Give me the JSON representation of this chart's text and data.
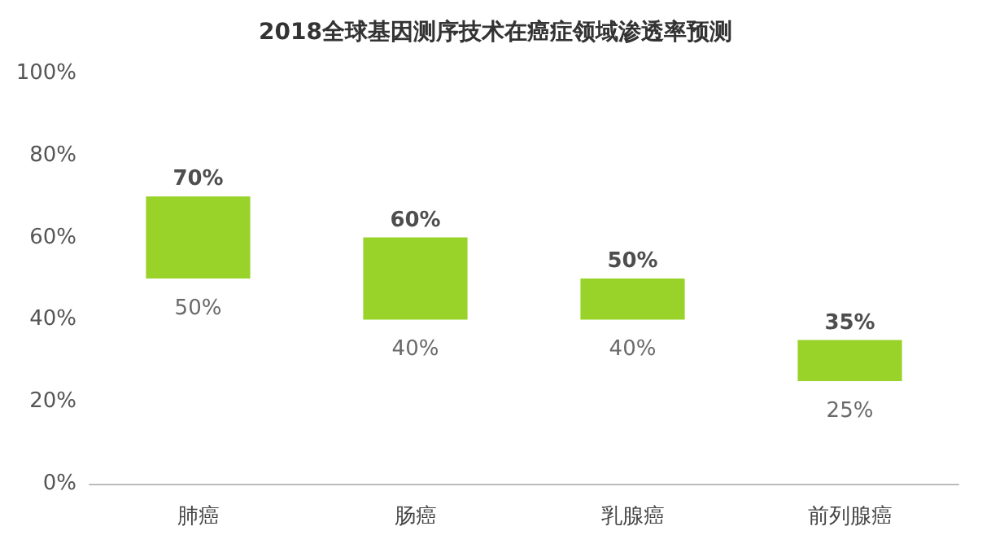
{
  "chart_data": {
    "type": "bar",
    "title": "2018全球基因测序技术在癌症领域渗透率预测",
    "categories": [
      "肺癌",
      "肠癌",
      "乳腺癌",
      "前列腺癌"
    ],
    "base": [
      50,
      40,
      40,
      25
    ],
    "values": [
      20,
      20,
      10,
      10
    ],
    "color": "#99d32a",
    "ylim": [
      0,
      100
    ],
    "yticks": [
      {
        "value": 0,
        "label": "0%"
      },
      {
        "value": 20,
        "label": "20%"
      },
      {
        "value": 40,
        "label": "40%"
      },
      {
        "value": 60,
        "label": "60%"
      },
      {
        "value": 80,
        "label": "80%"
      },
      {
        "value": 100,
        "label": "100%"
      }
    ],
    "grid": false,
    "annotations": [
      {
        "text": "70%",
        "x": "肺癌",
        "y": 70
      },
      {
        "text": "50%",
        "x": "肺癌",
        "y": 50
      },
      {
        "text": "60%",
        "x": "肠癌",
        "y": 60
      },
      {
        "text": "40%",
        "x": "肠癌",
        "y": 40
      },
      {
        "text": "50%",
        "x": "乳腺癌",
        "y": 50
      },
      {
        "text": "40%",
        "x": "乳腺癌",
        "y": 40
      },
      {
        "text": "35%",
        "x": "前列腺癌",
        "y": 35
      },
      {
        "text": "25%",
        "x": "前列腺癌",
        "y": 25
      }
    ]
  }
}
